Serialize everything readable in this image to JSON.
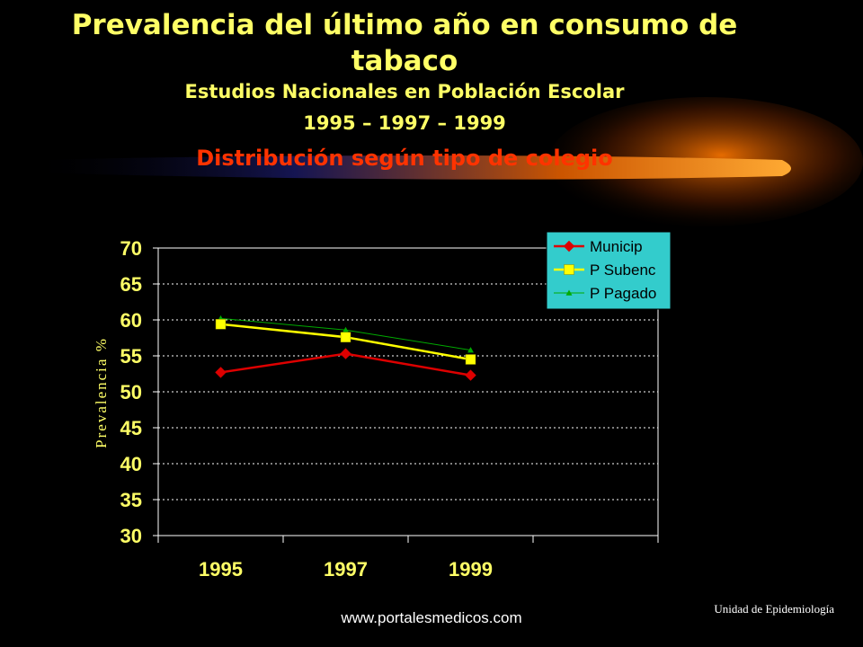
{
  "slide": {
    "title_line1": "Prevalencia del último año en consumo de tabaco",
    "title_line2": "Estudios Nacionales en Población Escolar",
    "title_line3": "1995 – 1997 – 1999",
    "title_line4": "Distribución según tipo de colegio",
    "footer_url": "www.portalesmedicos.com",
    "footer_unit": "Unidad de Epidemiología"
  },
  "colors": {
    "background": "#000000",
    "title": "#ffff66",
    "subtitle_accent": "#ff3300",
    "legend_bg": "#33cccc",
    "gridline": "#ffffff"
  },
  "chart_data": {
    "type": "line",
    "title": "",
    "xlabel": "",
    "ylabel": "Prevalencia  %",
    "categories": [
      "1995",
      "1997",
      "1999"
    ],
    "ylim": [
      30,
      70
    ],
    "yticks": [
      30,
      35,
      40,
      45,
      50,
      55,
      60,
      65,
      70
    ],
    "grid": true,
    "legend_position": "top-right",
    "series": [
      {
        "name": "Municip",
        "values": [
          52.7,
          55.3,
          52.3
        ],
        "color": "#dd0000",
        "marker": "diamond"
      },
      {
        "name": "P Subenc",
        "values": [
          59.4,
          57.6,
          54.5
        ],
        "color": "#ffff00",
        "marker": "square"
      },
      {
        "name": "P Pagado",
        "values": [
          60.2,
          58.6,
          55.8
        ],
        "color": "#00aa00",
        "marker": "triangle"
      }
    ]
  }
}
